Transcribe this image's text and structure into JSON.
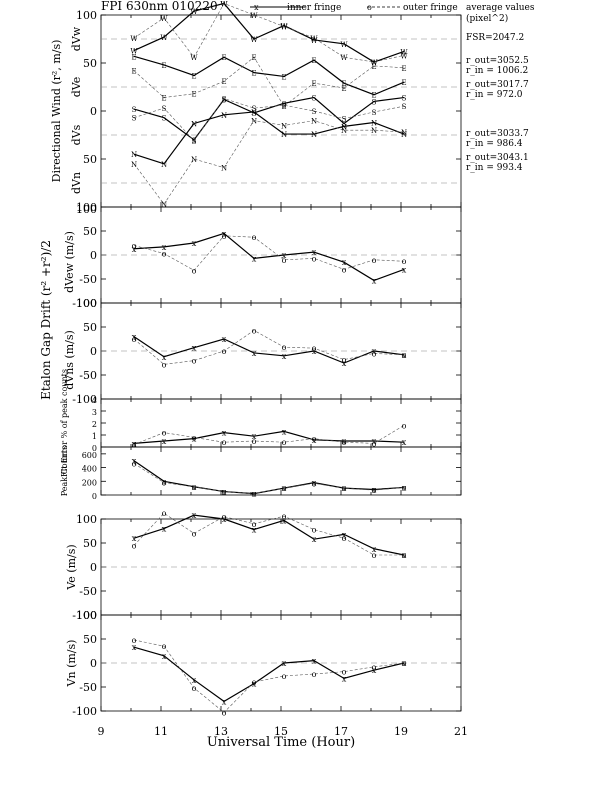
{
  "header": {
    "title": "FPI 630nm 010220",
    "legend_inner": "inner fringe",
    "legend_outer": "outer fringe",
    "note_title_line1": "average values",
    "note_title_line2": "(pixel^2)",
    "fsr": "FSR=2047.2",
    "w_rout": "r_out=3052.5",
    "w_rin": "r_in = 1006.2",
    "e_rout": "r_out=3017.7",
    "e_rin": "r_in = 972.0",
    "s_rout": "r_out=3033.7",
    "s_rin": "r_in = 986.4",
    "n_rout": "r_out=3043.1",
    "n_rin": "r_in = 993.4"
  },
  "xaxis": {
    "label": "Universal Time (Hour)",
    "ticks": [
      9,
      11,
      13,
      15,
      17,
      19,
      21
    ],
    "range": [
      9,
      21
    ]
  },
  "colors": {
    "line": "#000000",
    "dashed": "#666666",
    "zero": "#888888"
  },
  "chart_data": [
    {
      "id": "directional",
      "type": "line",
      "ylabel": "Directional Wind (r², m/s)",
      "side_labels": [
        "dVw",
        "dVe",
        "dVs",
        "dVn"
      ],
      "ylim": [
        -100,
        100
      ],
      "yticks": [
        100,
        50,
        0,
        -50,
        -100
      ],
      "offsets": {
        "W": 75,
        "E": 25,
        "S": -25,
        "N": -75
      },
      "x": [
        10.1,
        11.1,
        12.1,
        13.1,
        14.1,
        15.1,
        16.1,
        17.1,
        18.1,
        19.1
      ],
      "series": [
        {
          "name": "W inner",
          "marker": "W",
          "dashed": false,
          "values": [
            63,
            77,
            104,
            112,
            75,
            89,
            74,
            70,
            51,
            62
          ]
        },
        {
          "name": "W outer",
          "marker": "W",
          "dashed": true,
          "values": [
            76,
            97,
            56,
            112,
            100,
            88,
            76,
            56,
            51,
            58
          ]
        },
        {
          "name": "E inner",
          "marker": "E",
          "dashed": false,
          "values": [
            57,
            48,
            37,
            56,
            40,
            36,
            53,
            29,
            17,
            30
          ]
        },
        {
          "name": "E outer",
          "marker": "E",
          "dashed": true,
          "values": [
            42,
            14,
            18,
            31,
            56,
            5,
            29,
            24,
            47,
            45
          ]
        },
        {
          "name": "S inner",
          "marker": "S",
          "dashed": false,
          "values": [
            2,
            -7,
            -30,
            12,
            -2,
            8,
            14,
            -13,
            10,
            14
          ]
        },
        {
          "name": "S outer",
          "marker": "S",
          "dashed": true,
          "values": [
            -7,
            3,
            -31,
            13,
            3,
            6,
            0,
            -8,
            -1,
            5
          ]
        },
        {
          "name": "N inner",
          "marker": "N",
          "dashed": false,
          "values": [
            -45,
            -55,
            -13,
            -4,
            -1,
            -24,
            -24,
            -16,
            -12,
            -24
          ]
        },
        {
          "name": "N outer",
          "marker": "N",
          "dashed": true,
          "values": [
            -55,
            -97,
            -50,
            -59,
            -10,
            -15,
            -10,
            -20,
            -20,
            -22
          ]
        }
      ]
    },
    {
      "id": "dvew",
      "type": "line",
      "ylabel": "dVew (m/s)",
      "ylim": [
        -100,
        100
      ],
      "yticks": [
        100,
        50,
        0,
        -50,
        -100
      ],
      "x": [
        10.1,
        11.1,
        12.1,
        13.1,
        14.1,
        15.1,
        16.1,
        17.1,
        18.1,
        19.1
      ],
      "series": [
        {
          "name": "inner fringe",
          "marker": "x",
          "dashed": false,
          "values": [
            13,
            17,
            25,
            45,
            -7,
            0,
            6,
            -15,
            -53,
            -30
          ]
        },
        {
          "name": "outer fringe",
          "marker": "o",
          "dashed": true,
          "values": [
            20,
            3,
            -32,
            40,
            37,
            -10,
            -7,
            -30,
            -10,
            -13
          ]
        }
      ]
    },
    {
      "id": "dvns",
      "type": "line",
      "ylabel": "dVns (m/s)",
      "ylim": [
        -100,
        100
      ],
      "yticks": [
        100,
        50,
        0,
        -50,
        -100
      ],
      "x": [
        10.1,
        11.1,
        12.1,
        13.1,
        14.1,
        15.1,
        16.1,
        17.1,
        18.1,
        19.1
      ],
      "series": [
        {
          "name": "inner fringe",
          "marker": "x",
          "dashed": false,
          "values": [
            30,
            -12,
            7,
            25,
            -4,
            -10,
            0,
            -25,
            0,
            -8
          ]
        },
        {
          "name": "outer fringe",
          "marker": "o",
          "dashed": true,
          "values": [
            25,
            -28,
            -20,
            0,
            43,
            8,
            6,
            -18,
            -5,
            -8
          ]
        }
      ]
    },
    {
      "id": "fiterror",
      "type": "line",
      "ylabel": "Fit Error % of peak counts",
      "ylim": [
        0,
        4
      ],
      "yticks": [
        4,
        3,
        2,
        1,
        0
      ],
      "x": [
        10.1,
        11.1,
        12.1,
        13.1,
        14.1,
        15.1,
        16.1,
        17.1,
        18.1,
        19.1
      ],
      "series": [
        {
          "name": "inner fringe",
          "marker": "x",
          "dashed": false,
          "values": [
            0.3,
            0.5,
            0.7,
            1.2,
            0.9,
            1.3,
            0.6,
            0.5,
            0.5,
            0.4
          ]
        },
        {
          "name": "outer fringe",
          "marker": "o",
          "dashed": true,
          "values": [
            0.2,
            1.2,
            0.8,
            0.4,
            0.5,
            0.4,
            0.7,
            0.4,
            0.3,
            1.8
          ]
        }
      ]
    },
    {
      "id": "peak",
      "type": "line",
      "ylabel": "Peak Counts",
      "ylim": [
        0,
        700
      ],
      "yticks": [
        600,
        400,
        200,
        0
      ],
      "x": [
        10.1,
        11.1,
        12.1,
        13.1,
        14.1,
        15.1,
        16.1,
        17.1,
        18.1,
        19.1
      ],
      "series": [
        {
          "name": "inner fringe",
          "marker": "x",
          "dashed": false,
          "values": [
            500,
            200,
            120,
            50,
            20,
            100,
            180,
            100,
            80,
            110
          ]
        },
        {
          "name": "outer fringe",
          "marker": "o",
          "dashed": true,
          "values": [
            460,
            180,
            120,
            50,
            20,
            100,
            170,
            100,
            70,
            110
          ]
        }
      ]
    },
    {
      "id": "ve",
      "type": "line",
      "ylabel": "Ve (m/s)",
      "ylim": [
        -100,
        100
      ],
      "yticks": [
        100,
        50,
        0,
        -50,
        -100
      ],
      "x": [
        10.1,
        11.1,
        12.1,
        13.1,
        14.1,
        15.1,
        16.1,
        17.1,
        18.1,
        19.1
      ],
      "series": [
        {
          "name": "inner fringe",
          "marker": "x",
          "dashed": false,
          "values": [
            60,
            80,
            108,
            100,
            78,
            97,
            58,
            68,
            38,
            25
          ]
        },
        {
          "name": "outer fringe",
          "marker": "o",
          "dashed": true,
          "values": [
            45,
            112,
            70,
            105,
            90,
            106,
            78,
            60,
            25,
            25
          ]
        }
      ]
    },
    {
      "id": "vn",
      "type": "line",
      "ylabel": "Vn (m/s)",
      "ylim": [
        -100,
        100
      ],
      "yticks": [
        100,
        50,
        0,
        -50,
        -100
      ],
      "x": [
        10.1,
        11.1,
        12.1,
        13.1,
        14.1,
        15.1,
        16.1,
        17.1,
        18.1,
        19.1
      ],
      "series": [
        {
          "name": "inner fringe",
          "marker": "x",
          "dashed": false,
          "values": [
            33,
            15,
            -35,
            -80,
            -43,
            0,
            5,
            -32,
            -15,
            0
          ]
        },
        {
          "name": "outer fringe",
          "marker": "o",
          "dashed": true,
          "values": [
            48,
            35,
            -52,
            -103,
            -40,
            -27,
            -23,
            -18,
            -8,
            0
          ]
        }
      ]
    }
  ],
  "group_labels": {
    "etalon": "Etalon Gap Drift (r² +r²)/2",
    "directional_side": "dVn  dVs  dVe  dVw"
  }
}
